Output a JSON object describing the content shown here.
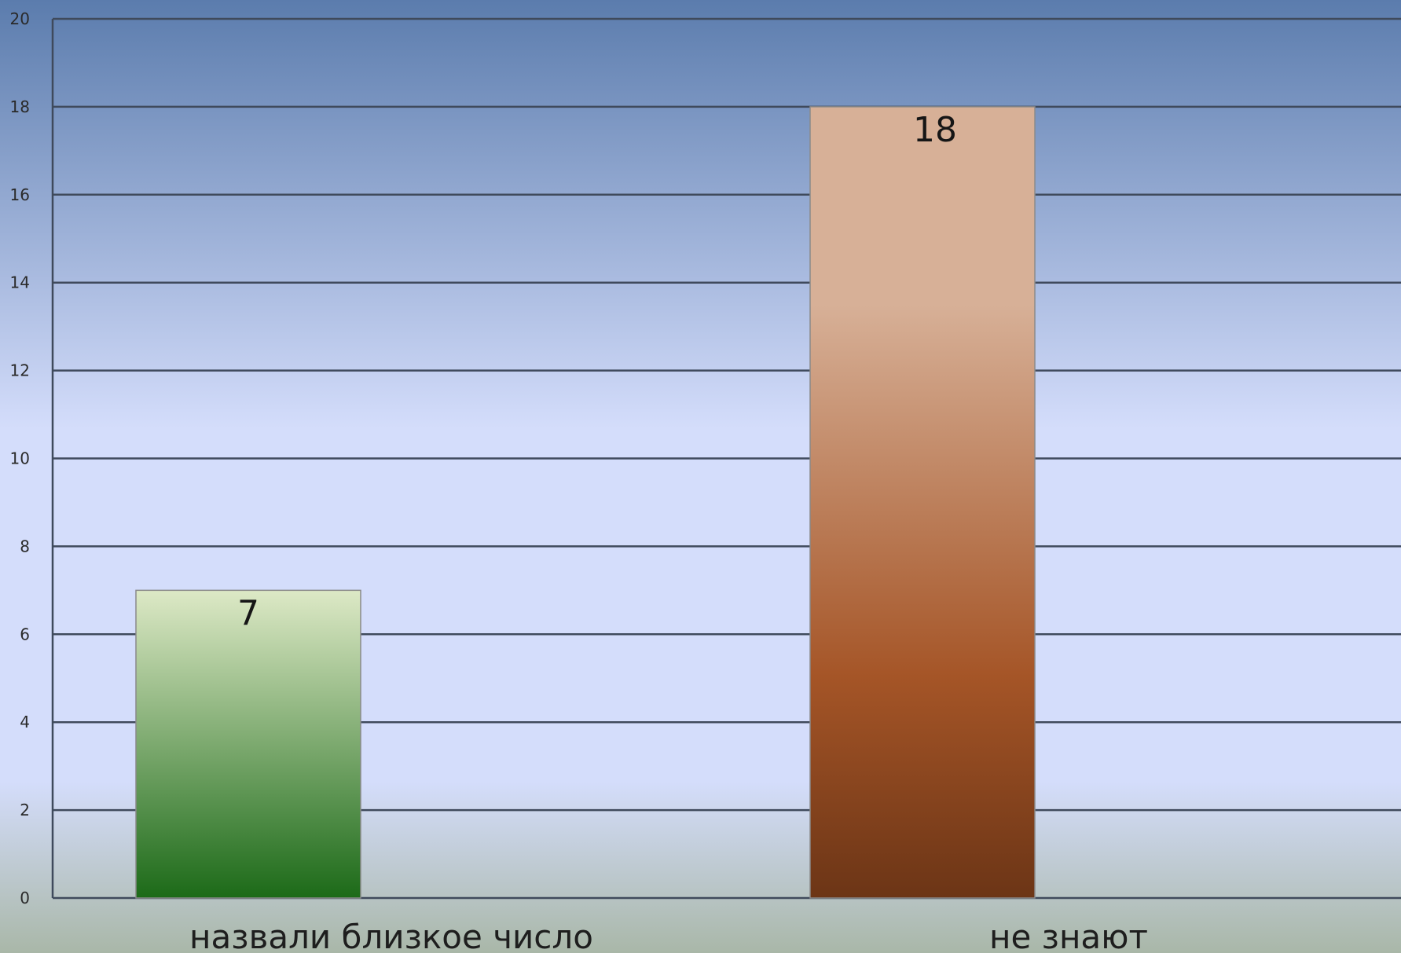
{
  "chart_data": {
    "type": "bar",
    "categories": [
      "назвали близкое число",
      "не знают"
    ],
    "values": [
      7,
      18
    ],
    "data_labels": [
      "7",
      "18"
    ],
    "ylim": [
      0,
      20
    ],
    "yticks": [
      0,
      2,
      4,
      6,
      8,
      10,
      12,
      14,
      16,
      18,
      20
    ],
    "grid": true,
    "legend": "none"
  },
  "colors": {
    "background_top": "#5b7cad",
    "background_mid": "#d4ddfb",
    "background_bottom": "#a9b7a8",
    "gridline": "#3f4a5c",
    "bar_1_top": "#dde9c6",
    "bar_1_bottom": "#1c6a18",
    "bar_2_top": "#d7b097",
    "bar_2_mid": "#a55527",
    "bar_2_bottom": "#6c3516"
  }
}
